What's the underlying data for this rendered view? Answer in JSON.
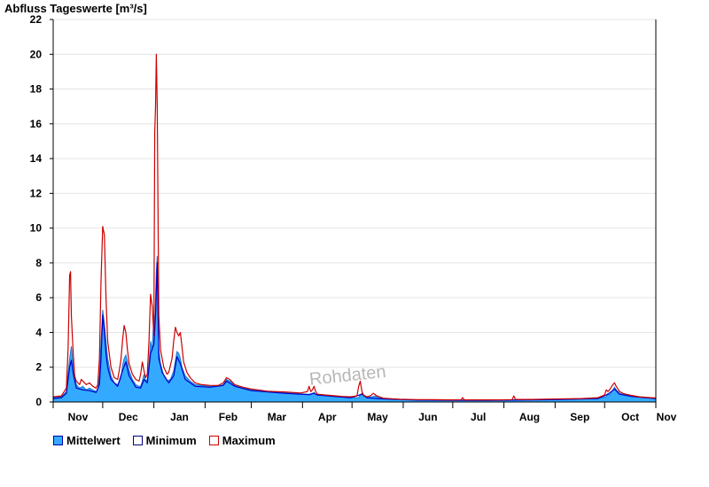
{
  "title": "Abfluss Tageswerte [m³/s]",
  "watermark": "Rohdaten",
  "colors": {
    "mean_fill": "#33aaff",
    "mean_line": "#1f78d0",
    "minimum": "#0000c8",
    "maximum": "#cc0000",
    "grid": "#e4e4e4",
    "axis": "#000000"
  },
  "legend": [
    {
      "label": "Mittelwert",
      "color": "#33aaff",
      "border": "#0000aa"
    },
    {
      "label": "Minimum",
      "color": "#ffffff",
      "border": "#000080"
    },
    {
      "label": "Maximum",
      "color": "#ffffff",
      "border": "#cc0000"
    }
  ],
  "chart_data": {
    "type": "area",
    "title": "Abfluss Tageswerte [m³/s]",
    "xlabel": "",
    "ylabel": "",
    "ylim": [
      0,
      22
    ],
    "yticks": [
      0,
      2,
      4,
      6,
      8,
      10,
      12,
      14,
      16,
      18,
      20,
      22
    ],
    "xlim": [
      0,
      365
    ],
    "month_ticks": [
      0,
      30,
      61,
      92,
      120,
      151,
      181,
      212,
      242,
      273,
      304,
      334,
      365
    ],
    "month_labels": [
      "Nov",
      "Dec",
      "Jan",
      "Feb",
      "Mar",
      "Apr",
      "May",
      "Jun",
      "Jul",
      "Aug",
      "Sep",
      "Oct",
      "Nov"
    ],
    "grid": true,
    "legend_position": "bottom",
    "x_unit": "day of hydrological year (1 Nov = 0)",
    "series": [
      {
        "name": "Mittelwert",
        "style": "area",
        "points": [
          [
            0,
            0.25
          ],
          [
            5,
            0.3
          ],
          [
            8,
            0.6
          ],
          [
            10,
            2.5
          ],
          [
            11,
            3.2
          ],
          [
            12,
            2.2
          ],
          [
            14,
            1.0
          ],
          [
            16,
            0.8
          ],
          [
            18,
            0.9
          ],
          [
            20,
            0.7
          ],
          [
            22,
            0.8
          ],
          [
            24,
            0.7
          ],
          [
            26,
            0.6
          ],
          [
            27,
            0.7
          ],
          [
            28,
            1.5
          ],
          [
            29,
            3.5
          ],
          [
            30,
            5.3
          ],
          [
            31,
            4.5
          ],
          [
            32,
            3.5
          ],
          [
            33,
            2.5
          ],
          [
            35,
            1.5
          ],
          [
            37,
            1.1
          ],
          [
            39,
            1.0
          ],
          [
            41,
            1.3
          ],
          [
            42,
            2.1
          ],
          [
            43,
            2.5
          ],
          [
            44,
            2.7
          ],
          [
            45,
            2.3
          ],
          [
            46,
            1.8
          ],
          [
            48,
            1.3
          ],
          [
            50,
            1.0
          ],
          [
            52,
            0.9
          ],
          [
            53,
            0.9
          ],
          [
            54,
            1.2
          ],
          [
            55,
            1.6
          ],
          [
            56,
            1.2
          ],
          [
            57,
            1.3
          ],
          [
            58,
            2.2
          ],
          [
            59,
            3.5
          ],
          [
            60,
            3.0
          ],
          [
            61,
            5.0
          ],
          [
            61.5,
            3.8
          ],
          [
            62,
            6.0
          ],
          [
            62.5,
            7.5
          ],
          [
            63,
            8.4
          ],
          [
            63.5,
            5.0
          ],
          [
            64,
            3.0
          ],
          [
            65,
            2.2
          ],
          [
            67,
            1.5
          ],
          [
            69,
            1.2
          ],
          [
            71,
            1.3
          ],
          [
            73,
            1.8
          ],
          [
            74,
            2.4
          ],
          [
            75,
            2.9
          ],
          [
            76,
            2.8
          ],
          [
            77,
            2.5
          ],
          [
            78,
            2.0
          ],
          [
            80,
            1.5
          ],
          [
            83,
            1.2
          ],
          [
            86,
            1.0
          ],
          [
            90,
            0.95
          ],
          [
            95,
            0.9
          ],
          [
            100,
            0.9
          ],
          [
            103,
            1.0
          ],
          [
            105,
            1.3
          ],
          [
            107,
            1.2
          ],
          [
            110,
            0.95
          ],
          [
            115,
            0.8
          ],
          [
            120,
            0.7
          ],
          [
            130,
            0.6
          ],
          [
            140,
            0.55
          ],
          [
            150,
            0.48
          ],
          [
            155,
            0.45
          ],
          [
            157,
            0.5
          ],
          [
            158,
            0.55
          ],
          [
            159,
            0.45
          ],
          [
            160,
            0.42
          ],
          [
            165,
            0.38
          ],
          [
            170,
            0.33
          ],
          [
            175,
            0.3
          ],
          [
            180,
            0.26
          ],
          [
            185,
            0.25
          ],
          [
            186,
            0.4
          ],
          [
            187,
            0.5
          ],
          [
            188,
            0.35
          ],
          [
            190,
            0.26
          ],
          [
            193,
            0.3
          ],
          [
            195,
            0.35
          ],
          [
            197,
            0.25
          ],
          [
            200,
            0.2
          ],
          [
            205,
            0.17
          ],
          [
            210,
            0.15
          ],
          [
            215,
            0.13
          ],
          [
            220,
            0.12
          ],
          [
            230,
            0.11
          ],
          [
            240,
            0.1
          ],
          [
            250,
            0.1
          ],
          [
            260,
            0.1
          ],
          [
            270,
            0.1
          ],
          [
            280,
            0.12
          ],
          [
            290,
            0.13
          ],
          [
            300,
            0.15
          ],
          [
            320,
            0.18
          ],
          [
            330,
            0.22
          ],
          [
            335,
            0.3
          ],
          [
            336,
            0.5
          ],
          [
            337,
            0.4
          ],
          [
            338,
            0.55
          ],
          [
            339,
            0.7
          ],
          [
            340,
            0.85
          ],
          [
            341,
            0.7
          ],
          [
            342,
            0.6
          ],
          [
            343,
            0.5
          ],
          [
            345,
            0.45
          ],
          [
            347,
            0.4
          ],
          [
            349,
            0.35
          ],
          [
            352,
            0.3
          ],
          [
            358,
            0.25
          ],
          [
            365,
            0.22
          ]
        ]
      },
      {
        "name": "Minimum",
        "style": "line",
        "points": [
          [
            0,
            0.2
          ],
          [
            5,
            0.25
          ],
          [
            8,
            0.5
          ],
          [
            10,
            2.0
          ],
          [
            11,
            2.4
          ],
          [
            12,
            1.7
          ],
          [
            14,
            0.8
          ],
          [
            18,
            0.7
          ],
          [
            22,
            0.65
          ],
          [
            26,
            0.55
          ],
          [
            28,
            1.0
          ],
          [
            29,
            2.5
          ],
          [
            30,
            5.0
          ],
          [
            31,
            4.0
          ],
          [
            32,
            2.8
          ],
          [
            33,
            2.0
          ],
          [
            35,
            1.3
          ],
          [
            39,
            0.9
          ],
          [
            42,
            1.8
          ],
          [
            44,
            2.3
          ],
          [
            46,
            1.5
          ],
          [
            50,
            0.85
          ],
          [
            53,
            0.8
          ],
          [
            55,
            1.3
          ],
          [
            57,
            1.1
          ],
          [
            59,
            2.8
          ],
          [
            61,
            3.3
          ],
          [
            62,
            5.0
          ],
          [
            63,
            8.0
          ],
          [
            64,
            2.5
          ],
          [
            66,
            1.7
          ],
          [
            70,
            1.1
          ],
          [
            73,
            1.5
          ],
          [
            75,
            2.6
          ],
          [
            77,
            2.2
          ],
          [
            80,
            1.3
          ],
          [
            86,
            0.9
          ],
          [
            95,
            0.85
          ],
          [
            103,
            0.95
          ],
          [
            105,
            1.2
          ],
          [
            110,
            0.9
          ],
          [
            120,
            0.65
          ],
          [
            140,
            0.5
          ],
          [
            155,
            0.42
          ],
          [
            158,
            0.5
          ],
          [
            160,
            0.4
          ],
          [
            180,
            0.24
          ],
          [
            187,
            0.45
          ],
          [
            190,
            0.24
          ],
          [
            200,
            0.18
          ],
          [
            220,
            0.11
          ],
          [
            260,
            0.09
          ],
          [
            300,
            0.13
          ],
          [
            330,
            0.2
          ],
          [
            336,
            0.45
          ],
          [
            340,
            0.75
          ],
          [
            343,
            0.45
          ],
          [
            350,
            0.32
          ],
          [
            365,
            0.2
          ]
        ]
      },
      {
        "name": "Maximum",
        "style": "line",
        "points": [
          [
            0,
            0.3
          ],
          [
            5,
            0.35
          ],
          [
            8,
            0.8
          ],
          [
            9,
            3.0
          ],
          [
            10,
            7.3
          ],
          [
            10.5,
            7.5
          ],
          [
            11,
            5.0
          ],
          [
            12,
            3.0
          ],
          [
            13,
            1.5
          ],
          [
            14,
            1.2
          ],
          [
            16,
            1.0
          ],
          [
            17,
            1.3
          ],
          [
            18,
            1.2
          ],
          [
            20,
            1.0
          ],
          [
            22,
            1.1
          ],
          [
            24,
            0.9
          ],
          [
            26,
            0.8
          ],
          [
            27,
            1.0
          ],
          [
            28,
            2.5
          ],
          [
            29,
            7.0
          ],
          [
            30,
            10.1
          ],
          [
            31,
            9.6
          ],
          [
            32,
            6.0
          ],
          [
            33,
            3.5
          ],
          [
            35,
            2.0
          ],
          [
            37,
            1.4
          ],
          [
            39,
            1.3
          ],
          [
            40,
            1.8
          ],
          [
            41,
            2.4
          ],
          [
            42,
            3.5
          ],
          [
            43,
            4.4
          ],
          [
            44,
            4.0
          ],
          [
            45,
            3.0
          ],
          [
            46,
            2.2
          ],
          [
            48,
            1.6
          ],
          [
            50,
            1.3
          ],
          [
            52,
            1.2
          ],
          [
            53,
            1.6
          ],
          [
            54,
            2.3
          ],
          [
            55,
            1.8
          ],
          [
            56,
            1.4
          ],
          [
            57,
            1.6
          ],
          [
            58,
            3.5
          ],
          [
            59,
            6.2
          ],
          [
            60,
            5.5
          ],
          [
            61,
            3.8
          ],
          [
            61.5,
            15.5
          ],
          [
            62,
            17.0
          ],
          [
            62.5,
            20.0
          ],
          [
            63,
            17.0
          ],
          [
            63.5,
            11.0
          ],
          [
            64,
            5.0
          ],
          [
            65,
            3.0
          ],
          [
            67,
            2.0
          ],
          [
            69,
            1.6
          ],
          [
            70,
            1.7
          ],
          [
            72,
            2.5
          ],
          [
            73,
            3.5
          ],
          [
            74,
            4.3
          ],
          [
            75,
            4.0
          ],
          [
            76,
            3.8
          ],
          [
            77,
            4.0
          ],
          [
            78,
            3.2
          ],
          [
            79,
            2.3
          ],
          [
            81,
            1.7
          ],
          [
            83,
            1.4
          ],
          [
            86,
            1.1
          ],
          [
            90,
            1.0
          ],
          [
            95,
            0.95
          ],
          [
            100,
            0.95
          ],
          [
            103,
            1.1
          ],
          [
            105,
            1.4
          ],
          [
            107,
            1.3
          ],
          [
            110,
            1.0
          ],
          [
            115,
            0.85
          ],
          [
            120,
            0.75
          ],
          [
            130,
            0.62
          ],
          [
            140,
            0.58
          ],
          [
            150,
            0.52
          ],
          [
            154,
            0.6
          ],
          [
            155,
            0.9
          ],
          [
            156,
            0.6
          ],
          [
            157,
            0.7
          ],
          [
            158,
            0.9
          ],
          [
            159,
            0.6
          ],
          [
            160,
            0.45
          ],
          [
            165,
            0.4
          ],
          [
            170,
            0.36
          ],
          [
            175,
            0.32
          ],
          [
            180,
            0.3
          ],
          [
            184,
            0.35
          ],
          [
            185,
            0.9
          ],
          [
            186,
            1.2
          ],
          [
            187,
            0.6
          ],
          [
            188,
            0.4
          ],
          [
            190,
            0.3
          ],
          [
            192,
            0.35
          ],
          [
            194,
            0.5
          ],
          [
            196,
            0.35
          ],
          [
            200,
            0.22
          ],
          [
            205,
            0.19
          ],
          [
            210,
            0.16
          ],
          [
            220,
            0.14
          ],
          [
            230,
            0.13
          ],
          [
            240,
            0.12
          ],
          [
            247,
            0.12
          ],
          [
            248,
            0.25
          ],
          [
            249,
            0.12
          ],
          [
            260,
            0.12
          ],
          [
            270,
            0.12
          ],
          [
            278,
            0.14
          ],
          [
            279,
            0.35
          ],
          [
            280,
            0.15
          ],
          [
            290,
            0.15
          ],
          [
            300,
            0.17
          ],
          [
            320,
            0.2
          ],
          [
            330,
            0.25
          ],
          [
            334,
            0.4
          ],
          [
            335,
            0.7
          ],
          [
            336,
            0.6
          ],
          [
            337,
            0.7
          ],
          [
            338,
            0.85
          ],
          [
            339,
            1.0
          ],
          [
            340,
            1.1
          ],
          [
            341,
            0.9
          ],
          [
            342,
            0.75
          ],
          [
            343,
            0.6
          ],
          [
            345,
            0.5
          ],
          [
            347,
            0.45
          ],
          [
            350,
            0.38
          ],
          [
            355,
            0.3
          ],
          [
            360,
            0.26
          ],
          [
            365,
            0.23
          ]
        ]
      }
    ]
  }
}
